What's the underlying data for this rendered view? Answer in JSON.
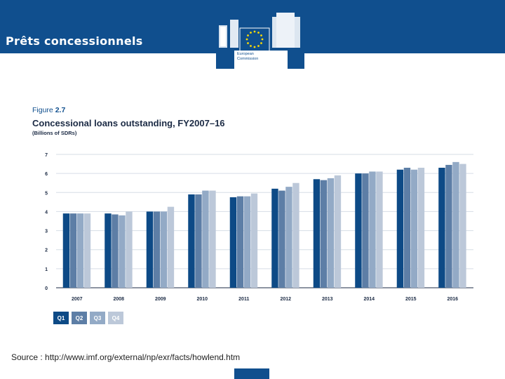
{
  "slide": {
    "title": "Prêts concessionnels"
  },
  "logo": {
    "line1": "European",
    "line2": "Commission"
  },
  "figure": {
    "label_prefix": "Figure",
    "label_number": "2.7",
    "title": "Concessional loans outstanding, FY2007–16",
    "units": "(Billions of SDRs)"
  },
  "source": "Source : http://www.imf.org/external/np/exr/facts/howlend.htm",
  "colors": {
    "band": "#104f8e",
    "Q1": "#0d4a86",
    "Q2": "#5d7ea6",
    "Q3": "#93aac6",
    "Q4": "#bcc8d9"
  },
  "chart_data": {
    "type": "bar",
    "title": "Concessional loans outstanding, FY2007–16",
    "ylabel": "(Billions of SDRs)",
    "xlabel": "",
    "categories": [
      "2007",
      "2008",
      "2009",
      "2010",
      "2011",
      "2012",
      "2013",
      "2014",
      "2015",
      "2016"
    ],
    "ylim": [
      0,
      7
    ],
    "yticks": [
      0,
      1,
      2,
      3,
      4,
      5,
      6,
      7
    ],
    "grid": true,
    "legend": "bottom-left",
    "series": [
      {
        "name": "Q1",
        "values": [
          3.9,
          3.9,
          4.0,
          4.9,
          4.75,
          5.2,
          5.7,
          6.0,
          6.2,
          6.3
        ]
      },
      {
        "name": "Q2",
        "values": [
          3.9,
          3.85,
          4.0,
          4.9,
          4.8,
          5.1,
          5.65,
          6.0,
          6.3,
          6.45
        ]
      },
      {
        "name": "Q3",
        "values": [
          3.9,
          3.8,
          4.0,
          5.1,
          4.8,
          5.3,
          5.75,
          6.1,
          6.2,
          6.6
        ]
      },
      {
        "name": "Q4",
        "values": [
          3.9,
          4.0,
          4.25,
          5.1,
          4.95,
          5.5,
          5.9,
          6.1,
          6.3,
          6.5
        ]
      }
    ]
  }
}
